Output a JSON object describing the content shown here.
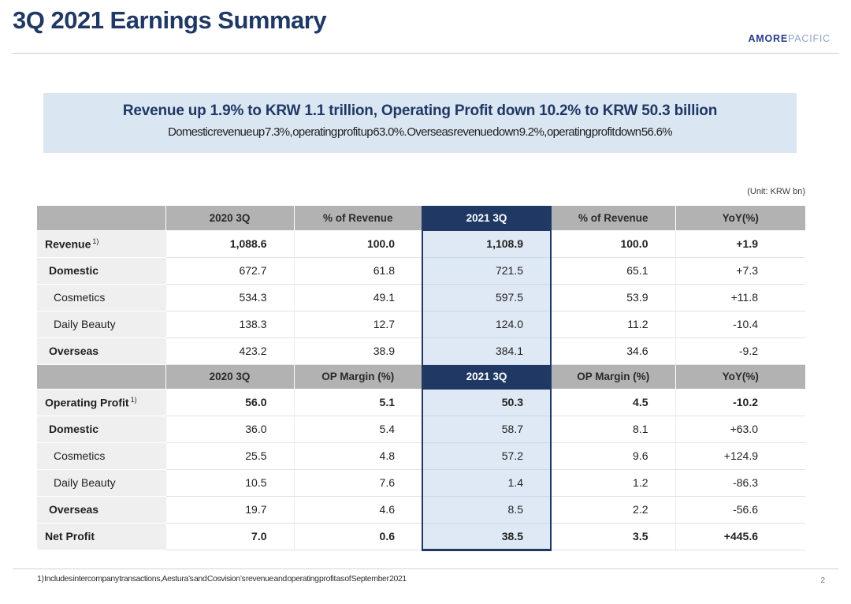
{
  "page": {
    "title": "3Q 2021 Earnings Summary",
    "page_number": "2"
  },
  "logo": {
    "amore": "AMORE",
    "pacific": "PACIFIC"
  },
  "highlight": {
    "headline": "Revenue up 1.9% to KRW 1.1 trillion, Operating Profit down 10.2% to KRW 50.3 billion",
    "subline": "Domestic revenue up 7.3%, operating profit up 63.0%. Overseas revenue down 9.2%, operating profit down 56.6%"
  },
  "table": {
    "unit_label": "(Unit: KRW bn)",
    "highlight_column": "2021 3Q",
    "rows": [
      {
        "type": "header",
        "cells": [
          "",
          "2020 3Q",
          "% of Revenue",
          "2021 3Q",
          "% of Revenue",
          "YoY(%)"
        ]
      },
      {
        "type": "data",
        "label": "Revenue",
        "footnote_ref": "1)",
        "indent": 0,
        "bold": true,
        "label_bold": true,
        "values": [
          "1,088.6",
          "100.0",
          "1,108.9",
          "100.0",
          "+1.9"
        ]
      },
      {
        "type": "data",
        "label": "Domestic",
        "indent": 1,
        "bold": false,
        "label_bold": true,
        "values": [
          "672.7",
          "61.8",
          "721.5",
          "65.1",
          "+7.3"
        ]
      },
      {
        "type": "data",
        "label": "Cosmetics",
        "indent": 2,
        "bold": false,
        "label_bold": false,
        "values": [
          "534.3",
          "49.1",
          "597.5",
          "53.9",
          "+11.8"
        ]
      },
      {
        "type": "data",
        "label": "Daily Beauty",
        "indent": 2,
        "bold": false,
        "label_bold": false,
        "values": [
          "138.3",
          "12.7",
          "124.0",
          "11.2",
          "-10.4"
        ]
      },
      {
        "type": "data",
        "label": "Overseas",
        "indent": 1,
        "bold": false,
        "label_bold": true,
        "values": [
          "423.2",
          "38.9",
          "384.1",
          "34.6",
          "-9.2"
        ]
      },
      {
        "type": "header",
        "cells": [
          "",
          "2020 3Q",
          "OP Margin (%)",
          "2021 3Q",
          "OP Margin (%)",
          "YoY(%)"
        ]
      },
      {
        "type": "data",
        "label": "Operating Profit",
        "footnote_ref": "1)",
        "indent": 0,
        "bold": true,
        "label_bold": true,
        "values": [
          "56.0",
          "5.1",
          "50.3",
          "4.5",
          "-10.2"
        ]
      },
      {
        "type": "data",
        "label": "Domestic",
        "indent": 1,
        "bold": false,
        "label_bold": true,
        "values": [
          "36.0",
          "5.4",
          "58.7",
          "8.1",
          "+63.0"
        ]
      },
      {
        "type": "data",
        "label": "Cosmetics",
        "indent": 2,
        "bold": false,
        "label_bold": false,
        "values": [
          "25.5",
          "4.8",
          "57.2",
          "9.6",
          "+124.9"
        ]
      },
      {
        "type": "data",
        "label": "Daily Beauty",
        "indent": 2,
        "bold": false,
        "label_bold": false,
        "values": [
          "10.5",
          "7.6",
          "1.4",
          "1.2",
          "-86.3"
        ]
      },
      {
        "type": "data",
        "label": "Overseas",
        "indent": 1,
        "bold": false,
        "label_bold": true,
        "values": [
          "19.7",
          "4.6",
          "8.5",
          "2.2",
          "-56.6"
        ]
      },
      {
        "type": "data",
        "label": "Net Profit",
        "indent": 0,
        "bold": true,
        "label_bold": true,
        "values": [
          "7.0",
          "0.6",
          "38.5",
          "3.5",
          "+445.6"
        ]
      }
    ]
  },
  "footnote": "1) Includes intercompany transactions, Aestura’s and Cosvision’s revenue and operating profit as of September 2021",
  "colors": {
    "navy": "#1F3864",
    "header_gray": "#B2B2B2",
    "highlight_blue": "#DBE6F3",
    "column_blue": "#DFE9F5",
    "label_gray": "#EFEFEF"
  }
}
